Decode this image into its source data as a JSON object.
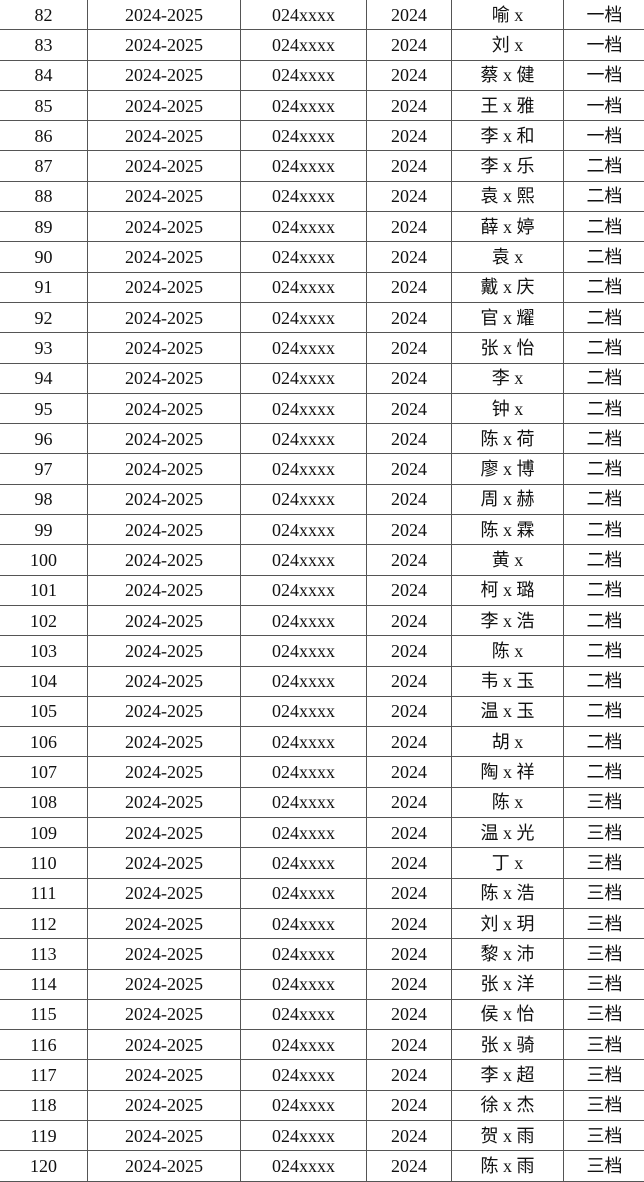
{
  "table": {
    "rows": [
      [
        "82",
        "2024-2025",
        "024xxxx",
        "2024",
        "喻 x",
        "一档"
      ],
      [
        "83",
        "2024-2025",
        "024xxxx",
        "2024",
        "刘 x",
        "一档"
      ],
      [
        "84",
        "2024-2025",
        "024xxxx",
        "2024",
        "蔡 x 健",
        "一档"
      ],
      [
        "85",
        "2024-2025",
        "024xxxx",
        "2024",
        "王 x 雅",
        "一档"
      ],
      [
        "86",
        "2024-2025",
        "024xxxx",
        "2024",
        "李 x 和",
        "一档"
      ],
      [
        "87",
        "2024-2025",
        "024xxxx",
        "2024",
        "李 x 乐",
        "二档"
      ],
      [
        "88",
        "2024-2025",
        "024xxxx",
        "2024",
        "袁 x 熙",
        "二档"
      ],
      [
        "89",
        "2024-2025",
        "024xxxx",
        "2024",
        "薛 x 婷",
        "二档"
      ],
      [
        "90",
        "2024-2025",
        "024xxxx",
        "2024",
        "袁 x",
        "二档"
      ],
      [
        "91",
        "2024-2025",
        "024xxxx",
        "2024",
        "戴 x 庆",
        "二档"
      ],
      [
        "92",
        "2024-2025",
        "024xxxx",
        "2024",
        "官 x 耀",
        "二档"
      ],
      [
        "93",
        "2024-2025",
        "024xxxx",
        "2024",
        "张 x 怡",
        "二档"
      ],
      [
        "94",
        "2024-2025",
        "024xxxx",
        "2024",
        "李 x",
        "二档"
      ],
      [
        "95",
        "2024-2025",
        "024xxxx",
        "2024",
        "钟 x",
        "二档"
      ],
      [
        "96",
        "2024-2025",
        "024xxxx",
        "2024",
        "陈 x 荷",
        "二档"
      ],
      [
        "97",
        "2024-2025",
        "024xxxx",
        "2024",
        "廖 x 博",
        "二档"
      ],
      [
        "98",
        "2024-2025",
        "024xxxx",
        "2024",
        "周 x 赫",
        "二档"
      ],
      [
        "99",
        "2024-2025",
        "024xxxx",
        "2024",
        "陈 x 霖",
        "二档"
      ],
      [
        "100",
        "2024-2025",
        "024xxxx",
        "2024",
        "黄 x",
        "二档"
      ],
      [
        "101",
        "2024-2025",
        "024xxxx",
        "2024",
        "柯 x 璐",
        "二档"
      ],
      [
        "102",
        "2024-2025",
        "024xxxx",
        "2024",
        "李 x 浩",
        "二档"
      ],
      [
        "103",
        "2024-2025",
        "024xxxx",
        "2024",
        "陈 x",
        "二档"
      ],
      [
        "104",
        "2024-2025",
        "024xxxx",
        "2024",
        "韦 x 玉",
        "二档"
      ],
      [
        "105",
        "2024-2025",
        "024xxxx",
        "2024",
        "温 x 玉",
        "二档"
      ],
      [
        "106",
        "2024-2025",
        "024xxxx",
        "2024",
        "胡 x",
        "二档"
      ],
      [
        "107",
        "2024-2025",
        "024xxxx",
        "2024",
        "陶 x 祥",
        "二档"
      ],
      [
        "108",
        "2024-2025",
        "024xxxx",
        "2024",
        "陈 x",
        "三档"
      ],
      [
        "109",
        "2024-2025",
        "024xxxx",
        "2024",
        "温 x 光",
        "三档"
      ],
      [
        "110",
        "2024-2025",
        "024xxxx",
        "2024",
        "丁 x",
        "三档"
      ],
      [
        "111",
        "2024-2025",
        "024xxxx",
        "2024",
        "陈 x 浩",
        "三档"
      ],
      [
        "112",
        "2024-2025",
        "024xxxx",
        "2024",
        "刘 x 玥",
        "三档"
      ],
      [
        "113",
        "2024-2025",
        "024xxxx",
        "2024",
        "黎 x 沛",
        "三档"
      ],
      [
        "114",
        "2024-2025",
        "024xxxx",
        "2024",
        "张 x 洋",
        "三档"
      ],
      [
        "115",
        "2024-2025",
        "024xxxx",
        "2024",
        "侯 x 怡",
        "三档"
      ],
      [
        "116",
        "2024-2025",
        "024xxxx",
        "2024",
        "张 x 骑",
        "三档"
      ],
      [
        "117",
        "2024-2025",
        "024xxxx",
        "2024",
        "李 x 超",
        "三档"
      ],
      [
        "118",
        "2024-2025",
        "024xxxx",
        "2024",
        "徐 x 杰",
        "三档"
      ],
      [
        "119",
        "2024-2025",
        "024xxxx",
        "2024",
        "贺 x 雨",
        "三档"
      ],
      [
        "120",
        "2024-2025",
        "024xxxx",
        "2024",
        "陈 x 雨",
        "三档"
      ]
    ]
  }
}
